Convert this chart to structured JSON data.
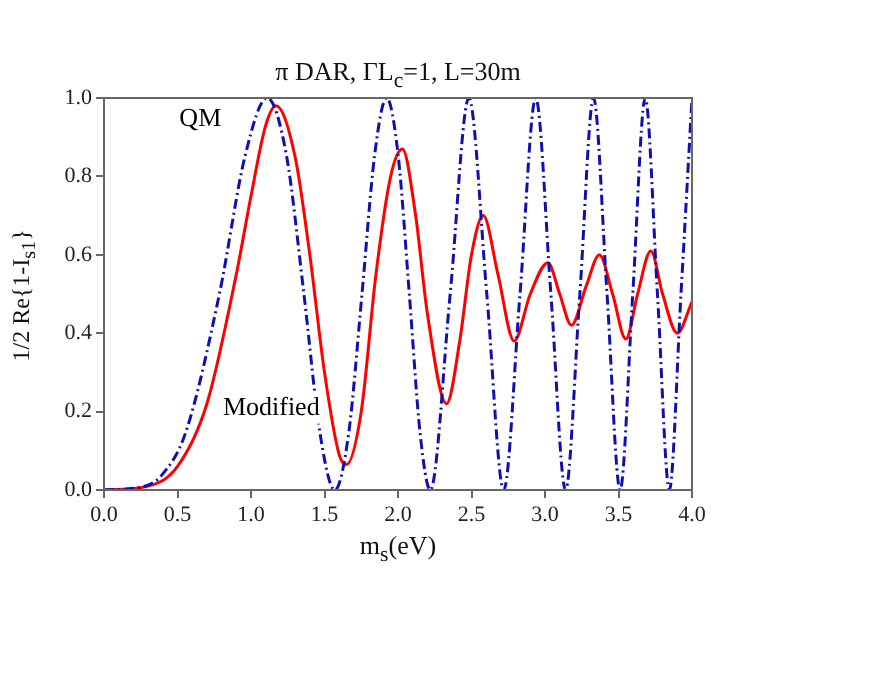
{
  "chart_data": {
    "type": "line",
    "title": "π DAR, ΓL$_{c}$=1, L=30m",
    "xlabel": "m$_{s}$(eV)",
    "ylabel": "1/2 Re{1-I$_{s1}$}",
    "xlim": [
      0,
      4
    ],
    "xticks": [
      {
        "value": 0,
        "label": "0.0"
      },
      {
        "value": 0.5,
        "label": "0.5"
      },
      {
        "value": 1,
        "label": "1.0"
      },
      {
        "value": 1.5,
        "label": "1.5"
      },
      {
        "value": 2,
        "label": "2.0"
      },
      {
        "value": 2.5,
        "label": "2.5"
      },
      {
        "value": 3,
        "label": "3.0"
      },
      {
        "value": 3.5,
        "label": "3.5"
      },
      {
        "value": 4,
        "label": "4.0"
      }
    ],
    "ylim": [
      0,
      1
    ],
    "yticks": [
      {
        "value": 0,
        "label": "0.0"
      },
      {
        "value": 0.2,
        "label": "0.2"
      },
      {
        "value": 0.4,
        "label": "0.4"
      },
      {
        "value": 0.6,
        "label": "0.6"
      },
      {
        "value": 0.8,
        "label": "0.8"
      },
      {
        "value": 1,
        "label": "1.0"
      }
    ],
    "grid": false,
    "legend": false,
    "marker": "none",
    "series": [
      {
        "name": "QM",
        "color": "#1010b0",
        "line_style": "dashed",
        "x": [
          0,
          0.272,
          0.393,
          0.555,
          0.785,
          0.961,
          1.11,
          1.241,
          1.36,
          1.469,
          1.57,
          1.665,
          1.755,
          1.841,
          1.923,
          2.001,
          2.077,
          2.15,
          2.22,
          2.355,
          2.482,
          2.604,
          2.719,
          2.83,
          2.937,
          3.04,
          3.14,
          3.237,
          3.33,
          3.422,
          3.511,
          3.597,
          3.682,
          3.765,
          3.846,
          3.925,
          4.0
        ],
        "values": [
          0,
          0.009,
          0.038,
          0.146,
          0.5,
          0.854,
          1,
          0.854,
          0.5,
          0.146,
          0,
          0.146,
          0.5,
          0.854,
          1,
          0.854,
          0.5,
          0.146,
          0,
          0.5,
          1,
          0.5,
          0,
          0.5,
          1,
          0.5,
          0,
          0.5,
          1,
          0.5,
          0,
          0.5,
          1,
          0.5,
          0,
          0.5,
          1
        ]
      },
      {
        "name": "Modified",
        "color": "#ff0000",
        "line_style": "solid",
        "x": [
          0,
          0.3,
          0.5,
          0.7,
          0.9,
          1.0,
          1.1,
          1.17,
          1.3,
          1.4,
          1.5,
          1.6,
          1.65,
          1.75,
          1.85,
          1.95,
          2.03,
          2.12,
          2.2,
          2.33,
          2.42,
          2.5,
          2.58,
          2.68,
          2.79,
          2.9,
          3.02,
          3.1,
          3.18,
          3.28,
          3.37,
          3.46,
          3.55,
          3.63,
          3.72,
          3.8,
          3.9,
          4.0
        ],
        "values": [
          0,
          0.01,
          0.06,
          0.22,
          0.55,
          0.75,
          0.93,
          0.98,
          0.85,
          0.6,
          0.3,
          0.09,
          0.065,
          0.2,
          0.55,
          0.8,
          0.87,
          0.7,
          0.45,
          0.22,
          0.38,
          0.6,
          0.7,
          0.55,
          0.38,
          0.5,
          0.58,
          0.5,
          0.42,
          0.52,
          0.6,
          0.5,
          0.385,
          0.5,
          0.61,
          0.5,
          0.4,
          0.48
        ]
      }
    ]
  }
}
